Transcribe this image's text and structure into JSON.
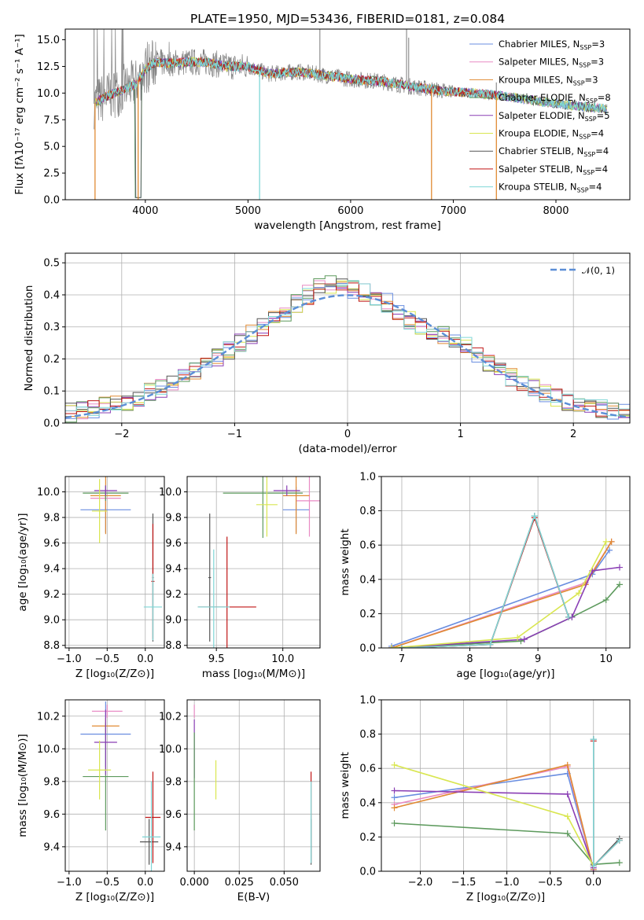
{
  "colors": {
    "Chabrier MILES": "#6a8ee0",
    "Salpeter MILES": "#e88ac4",
    "Kroupa MILES": "#e08a33",
    "Chabrier ELODIE": "#5d9a5d",
    "Salpeter ELODIE": "#8a3fb5",
    "Kroupa ELODIE": "#d9e650",
    "Chabrier STELIB": "#555555",
    "Salpeter STELIB": "#c01515",
    "Kroupa STELIB": "#7fd6d6",
    "normal": "#5b8ed6"
  },
  "chart_data": [
    {
      "type": "line",
      "title": "PLATE=1950, MJD=53436, FIBERID=0181, z=0.084",
      "xlabel": "wavelength [Angstrom, rest frame]",
      "ylabel": "Flux [fλ10⁻¹⁷ erg cm⁻² s⁻¹ A⁻¹]",
      "xlim": [
        3220,
        8720
      ],
      "ylim": [
        0,
        16
      ],
      "xticks": [
        "4000",
        "5000",
        "6000",
        "7000",
        "8000"
      ],
      "yticks": [
        "0.0",
        "2.5",
        "5.0",
        "7.5",
        "10.0",
        "12.5",
        "15.0"
      ],
      "legend": "top-right",
      "grid": false,
      "series": [
        {
          "name": "Chabrier MILES",
          "nssp": "3"
        },
        {
          "name": "Salpeter MILES",
          "nssp": "3"
        },
        {
          "name": "Kroupa MILES",
          "nssp": "3"
        },
        {
          "name": "Chabrier ELODIE",
          "nssp": "8"
        },
        {
          "name": "Salpeter ELODIE",
          "nssp": "5"
        },
        {
          "name": "Kroupa ELODIE",
          "nssp": "4"
        },
        {
          "name": "Chabrier STELIB",
          "nssp": "4"
        },
        {
          "name": "Salpeter STELIB",
          "nssp": "4"
        },
        {
          "name": "Kroupa STELIB",
          "nssp": "4"
        }
      ],
      "continuum": {
        "x": [
          3500,
          3600,
          3700,
          3800,
          3900,
          4000,
          4100,
          4200,
          4400,
          4600,
          4800,
          5000,
          5200,
          5500,
          5800,
          6000,
          6300,
          6600,
          6900,
          7200,
          7500,
          8000,
          8500
        ],
        "y": [
          9.0,
          9.6,
          10.0,
          10.4,
          10.8,
          12.2,
          12.9,
          12.8,
          12.9,
          12.9,
          12.5,
          12.5,
          11.8,
          12.0,
          11.6,
          11.3,
          11.1,
          10.6,
          10.2,
          10.0,
          9.7,
          9.0,
          8.5
        ]
      },
      "edges": {
        "x": [
          3510,
          7420
        ],
        "y": 0
      },
      "sky_lines": [
        3930,
        5113,
        6788
      ],
      "features": {
        "x": [
          3500,
          3780,
          5700,
          6545,
          6565,
          7420
        ],
        "y": [
          16,
          16,
          16,
          16,
          15.2,
          11
        ]
      }
    },
    {
      "type": "step",
      "xlabel": "(data-model)/error",
      "ylabel": "Normed distribution",
      "xlim": [
        -2.5,
        2.5
      ],
      "ylim": [
        0,
        0.53
      ],
      "xticks": [
        "−2",
        "−1",
        "0",
        "1",
        "2"
      ],
      "yticks": [
        "0.0",
        "0.1",
        "0.2",
        "0.3",
        "0.4",
        "0.5"
      ],
      "legend": "top-right",
      "legend_label": "𝒩(0, 1)",
      "grid": true,
      "bin_width": 0.1,
      "profile": {
        "x": [
          -2.5,
          -2.0,
          -1.5,
          -1.0,
          -0.5,
          -0.2,
          0.0,
          0.3,
          0.5,
          1.0,
          1.5,
          2.0,
          2.5
        ],
        "y": [
          0.03,
          0.06,
          0.13,
          0.24,
          0.36,
          0.44,
          0.42,
          0.39,
          0.33,
          0.25,
          0.13,
          0.06,
          0.03
        ]
      },
      "normal_curve": {
        "mu": 0,
        "sigma": 1
      }
    },
    {
      "type": "errorbar",
      "xlabel": "Z [log₁₀(Z/Z⊙)]",
      "ylabel": "age  [log₁₀(age/yr)]",
      "xlim": [
        -1.05,
        0.25
      ],
      "ylim": [
        8.78,
        10.12
      ],
      "xticks": [
        "−1.0",
        "−0.5",
        "0.0"
      ],
      "yticks": [
        "8.8",
        "9.0",
        "9.2",
        "9.4",
        "9.6",
        "9.8",
        "10.0"
      ],
      "grid": true,
      "points": [
        {
          "s": "Chabrier MILES",
          "x": -0.52,
          "xerr": 0.33,
          "y": 9.86,
          "yerr": 0.18
        },
        {
          "s": "Salpeter MILES",
          "x": -0.52,
          "xerr": 0.2,
          "y": 9.95,
          "yerr": 0.1
        },
        {
          "s": "Kroupa MILES",
          "x": -0.52,
          "xerr": 0.2,
          "y": 9.97,
          "yerr": 0.3
        },
        {
          "s": "Chabrier ELODIE",
          "x": -0.52,
          "xerr": 0.3,
          "y": 9.99,
          "yerr": 0.06
        },
        {
          "s": "Salpeter ELODIE",
          "x": -0.52,
          "xerr": 0.15,
          "y": 10.01,
          "yerr": 0.04
        },
        {
          "s": "Kroupa ELODIE",
          "x": -0.6,
          "xerr": 0.1,
          "y": 9.85,
          "yerr": 0.25
        },
        {
          "s": "Chabrier STELIB",
          "x": 0.1,
          "xerr": 0.01,
          "y": 9.33,
          "yerr": 0.5
        },
        {
          "s": "Salpeter STELIB",
          "x": 0.1,
          "xerr": 0.02,
          "y": 9.3,
          "yerr": 0.45
        },
        {
          "s": "Kroupa STELIB",
          "x": 0.1,
          "xerr": 0.12,
          "y": 9.1,
          "yerr": 0.26
        }
      ]
    },
    {
      "type": "errorbar",
      "xlabel": "mass [log₁₀(M/M⊙)]",
      "ylabel": "",
      "xlim": [
        9.28,
        10.28
      ],
      "ylim": [
        8.78,
        10.12
      ],
      "xticks": [
        "9.5",
        "10.0"
      ],
      "yticks": [
        "8.8",
        "9.0",
        "9.2",
        "9.4",
        "9.6",
        "9.8",
        "10.0"
      ],
      "grid": true,
      "points": [
        {
          "s": "Chabrier MILES",
          "x": 10.1,
          "xerr": 0.1,
          "y": 9.86,
          "yerr": 0.18
        },
        {
          "s": "Salpeter MILES",
          "x": 10.2,
          "xerr": 0.1,
          "y": 9.93,
          "yerr": 0.28
        },
        {
          "s": "Kroupa MILES",
          "x": 10.1,
          "xerr": 0.1,
          "y": 9.97,
          "yerr": 0.3
        },
        {
          "s": "Chabrier ELODIE",
          "x": 9.85,
          "xerr": 0.3,
          "y": 9.99,
          "yerr": 0.35
        },
        {
          "s": "Salpeter ELODIE",
          "x": 10.03,
          "xerr": 0.1,
          "y": 10.01,
          "yerr": 0.04
        },
        {
          "s": "Kroupa ELODIE",
          "x": 9.88,
          "xerr": 0.08,
          "y": 9.9,
          "yerr": 0.25
        },
        {
          "s": "Chabrier STELIB",
          "x": 9.45,
          "xerr": 0.01,
          "y": 9.33,
          "yerr": 0.5
        },
        {
          "s": "Salpeter STELIB",
          "x": 9.58,
          "xerr": 0.22,
          "y": 9.1,
          "yerr": 0.55
        },
        {
          "s": "Kroupa STELIB",
          "x": 9.48,
          "xerr": 0.12,
          "y": 9.1,
          "yerr": 0.45
        }
      ]
    },
    {
      "type": "line",
      "xlabel": "age  [log₁₀(age/yr)]",
      "ylabel": "mass weight",
      "xlim": [
        6.7,
        10.35
      ],
      "ylim": [
        0,
        1
      ],
      "xticks": [
        "7",
        "8",
        "9",
        "10"
      ],
      "yticks": [
        "0.0",
        "0.2",
        "0.4",
        "0.6",
        "0.8",
        "1.0"
      ],
      "grid": true,
      "series": [
        {
          "name": "Chabrier MILES",
          "x": [
            6.85,
            9.8,
            10.05
          ],
          "y": [
            0.01,
            0.43,
            0.57
          ]
        },
        {
          "name": "Salpeter MILES",
          "x": [
            6.85,
            9.7,
            10.08
          ],
          "y": [
            0.0,
            0.38,
            0.62
          ]
        },
        {
          "name": "Kroupa MILES",
          "x": [
            6.85,
            9.7,
            10.08
          ],
          "y": [
            0.0,
            0.37,
            0.62
          ]
        },
        {
          "name": "Chabrier ELODIE",
          "x": [
            6.85,
            8.75,
            9.5,
            10.0,
            10.2
          ],
          "y": [
            0.0,
            0.04,
            0.18,
            0.28,
            0.37
          ]
        },
        {
          "name": "Salpeter ELODIE",
          "x": [
            6.85,
            8.8,
            9.5,
            9.8,
            10.2
          ],
          "y": [
            0.0,
            0.05,
            0.18,
            0.45,
            0.47
          ]
        },
        {
          "name": "Kroupa ELODIE",
          "x": [
            6.85,
            8.7,
            9.6,
            10.0
          ],
          "y": [
            0.0,
            0.06,
            0.32,
            0.62
          ]
        },
        {
          "name": "Chabrier STELIB",
          "x": [
            7.0,
            8.3,
            8.95,
            9.45
          ],
          "y": [
            0.0,
            0.02,
            0.77,
            0.18
          ]
        },
        {
          "name": "Salpeter STELIB",
          "x": [
            7.0,
            8.3,
            8.95,
            9.45
          ],
          "y": [
            0.0,
            0.02,
            0.76,
            0.18
          ]
        },
        {
          "name": "Kroupa STELIB",
          "x": [
            7.0,
            8.3,
            8.95,
            9.45
          ],
          "y": [
            0.0,
            0.02,
            0.77,
            0.18
          ]
        }
      ]
    },
    {
      "type": "errorbar",
      "xlabel": "Z [log₁₀(Z/Z⊙)]",
      "ylabel": "mass [log₁₀(M/M⊙)]",
      "xlim": [
        -1.05,
        0.25
      ],
      "ylim": [
        9.25,
        10.3
      ],
      "xticks": [
        "−1.0",
        "−0.5",
        "0.0"
      ],
      "yticks": [
        "9.4",
        "9.6",
        "9.8",
        "10.0",
        "10.2"
      ],
      "grid": true,
      "points": [
        {
          "s": "Chabrier MILES",
          "x": -0.52,
          "xerr": 0.33,
          "y": 10.09,
          "yerr": 0.2
        },
        {
          "s": "Salpeter MILES",
          "x": -0.5,
          "xerr": 0.2,
          "y": 10.23,
          "yerr": 0.04
        },
        {
          "s": "Kroupa MILES",
          "x": -0.52,
          "xerr": 0.18,
          "y": 10.14,
          "yerr": 0.05
        },
        {
          "s": "Chabrier ELODIE",
          "x": -0.52,
          "xerr": 0.3,
          "y": 9.83,
          "yerr": 0.33
        },
        {
          "s": "Salpeter ELODIE",
          "x": -0.52,
          "xerr": 0.15,
          "y": 10.04,
          "yerr": 0.2
        },
        {
          "s": "Kroupa ELODIE",
          "x": -0.6,
          "xerr": 0.15,
          "y": 9.87,
          "yerr": 0.18
        },
        {
          "s": "Chabrier STELIB",
          "x": 0.05,
          "xerr": 0.12,
          "y": 9.43,
          "yerr": 0.14
        },
        {
          "s": "Salpeter STELIB",
          "x": 0.1,
          "xerr": 0.1,
          "y": 9.58,
          "yerr": 0.28
        },
        {
          "s": "Kroupa STELIB",
          "x": 0.08,
          "xerr": 0.12,
          "y": 9.46,
          "yerr": 0.34
        }
      ]
    },
    {
      "type": "errorbar",
      "xlabel": "E(B-V)",
      "ylabel": "",
      "xlim": [
        -0.004,
        0.07
      ],
      "ylim": [
        9.25,
        10.3
      ],
      "xticks": [
        "0.000",
        "0.025",
        "0.050"
      ],
      "yticks": [
        "9.4",
        "9.6",
        "9.8",
        "10.0",
        "10.2"
      ],
      "grid": true,
      "points": [
        {
          "s": "Salpeter MILES",
          "x": 0.0,
          "xerr": 0,
          "y": 10.23,
          "yerr": 0.04
        },
        {
          "s": "Salpeter ELODIE",
          "x": 0.0,
          "xerr": 0,
          "y": 10.0,
          "yerr": 0.18
        },
        {
          "s": "Chabrier ELODIE",
          "x": 0.0,
          "xerr": 0,
          "y": 9.8,
          "yerr": 0.3
        },
        {
          "s": "Kroupa ELODIE",
          "x": 0.012,
          "xerr": 0,
          "y": 9.81,
          "yerr": 0.12
        },
        {
          "s": "Salpeter STELIB",
          "x": 0.065,
          "xerr": 0,
          "y": 9.58,
          "yerr": 0.28
        },
        {
          "s": "Chabrier STELIB",
          "x": 0.065,
          "xerr": 0,
          "y": 9.43,
          "yerr": 0.14
        },
        {
          "s": "Kroupa STELIB",
          "x": 0.065,
          "xerr": 0,
          "y": 9.55,
          "yerr": 0.25
        }
      ]
    },
    {
      "type": "line",
      "xlabel": "Z [log₁₀(Z/Z⊙)]",
      "ylabel": "mass weight",
      "xlim": [
        -2.45,
        0.42
      ],
      "ylim": [
        0,
        1
      ],
      "xticks": [
        "−2.0",
        "−1.5",
        "−1.0",
        "−0.5",
        "0.0"
      ],
      "yticks": [
        "0.0",
        "0.2",
        "0.4",
        "0.6",
        "0.8",
        "1.0"
      ],
      "grid": true,
      "series": [
        {
          "name": "Chabrier MILES",
          "x": [
            -2.3,
            -0.3,
            0.0
          ],
          "y": [
            0.43,
            0.57,
            0.01
          ]
        },
        {
          "name": "Salpeter MILES",
          "x": [
            -2.3,
            -0.3,
            0.0
          ],
          "y": [
            0.39,
            0.61,
            0.0
          ]
        },
        {
          "name": "Kroupa MILES",
          "x": [
            -2.3,
            -0.3,
            0.0
          ],
          "y": [
            0.37,
            0.62,
            0.01
          ]
        },
        {
          "name": "Chabrier ELODIE",
          "x": [
            -2.3,
            -0.3,
            0.0,
            0.3
          ],
          "y": [
            0.28,
            0.22,
            0.04,
            0.05
          ]
        },
        {
          "name": "Salpeter ELODIE",
          "x": [
            -2.3,
            -0.3,
            0.0
          ],
          "y": [
            0.47,
            0.45,
            0.02
          ]
        },
        {
          "name": "Kroupa ELODIE",
          "x": [
            -2.3,
            -0.3,
            0.0
          ],
          "y": [
            0.62,
            0.32,
            0.03
          ]
        },
        {
          "name": "Chabrier STELIB",
          "x": [
            0.0,
            0.0,
            0.3
          ],
          "y": [
            0.77,
            0.03,
            0.19
          ]
        },
        {
          "name": "Salpeter STELIB",
          "x": [
            0.0,
            0.0,
            0.3
          ],
          "y": [
            0.76,
            0.03,
            0.18
          ]
        },
        {
          "name": "Kroupa STELIB",
          "x": [
            0.0,
            0.0,
            0.3
          ],
          "y": [
            0.77,
            0.03,
            0.18
          ]
        }
      ]
    }
  ]
}
